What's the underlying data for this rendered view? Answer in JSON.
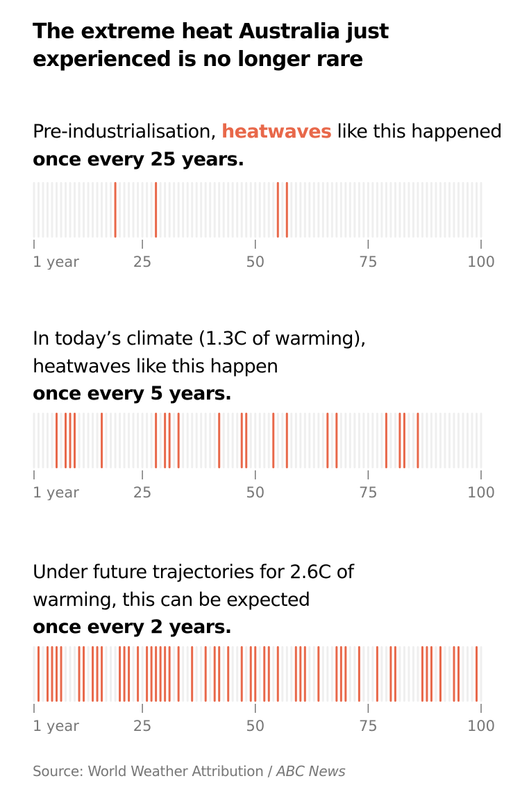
{
  "title": "The extreme heat Australia just experienced is no longer rare",
  "colors": {
    "event": "#e8684a",
    "no_event": "#efefef",
    "axis": "#777777"
  },
  "panels": [
    {
      "pre": "Pre-industrialisation, ",
      "highlight": "heatwaves",
      "mid": " like this happened ",
      "bold": "once every 25 years."
    },
    {
      "pre": "In today’s climate (1.3C of warming), heatwaves like this happen ",
      "highlight": "",
      "mid": "",
      "bold": "once every 5 years."
    },
    {
      "pre": "Under future trajectories for 2.6C of warming, this can be expected ",
      "highlight": "",
      "mid": "",
      "bold": "once every 2 years."
    }
  ],
  "source": {
    "text": "Source: World Weather Attribution / ",
    "italic": "ABC News"
  },
  "chart_data": [
    {
      "type": "bar",
      "title": "Pre-industrialisation",
      "x_range": [
        1,
        100
      ],
      "x_ticks": [
        1,
        25,
        50,
        75,
        100
      ],
      "x_tick_labels": [
        "1 year",
        "25",
        "50",
        "75",
        "100"
      ],
      "event_years": [
        19,
        28,
        55,
        57
      ]
    },
    {
      "type": "bar",
      "title": "Today's climate (1.3C of warming)",
      "x_range": [
        1,
        100
      ],
      "x_ticks": [
        1,
        25,
        50,
        75,
        100
      ],
      "x_tick_labels": [
        "1 year",
        "25",
        "50",
        "75",
        "100"
      ],
      "event_years": [
        6,
        8,
        9,
        10,
        16,
        28,
        30,
        31,
        33,
        42,
        47,
        48,
        54,
        57,
        66,
        68,
        79,
        82,
        83,
        86
      ]
    },
    {
      "type": "bar",
      "title": "2.6C of warming",
      "x_range": [
        1,
        100
      ],
      "x_ticks": [
        1,
        25,
        50,
        75,
        100
      ],
      "x_tick_labels": [
        "1 year",
        "25",
        "50",
        "75",
        "100"
      ],
      "event_years": [
        2,
        4,
        5,
        6,
        7,
        11,
        12,
        14,
        15,
        16,
        20,
        21,
        22,
        24,
        26,
        27,
        28,
        29,
        30,
        31,
        33,
        36,
        39,
        41,
        42,
        44,
        47,
        49,
        50,
        52,
        53,
        55,
        59,
        60,
        61,
        64,
        68,
        69,
        70,
        73,
        77,
        80,
        81,
        87,
        88,
        89,
        91,
        94,
        95,
        99
      ]
    }
  ]
}
